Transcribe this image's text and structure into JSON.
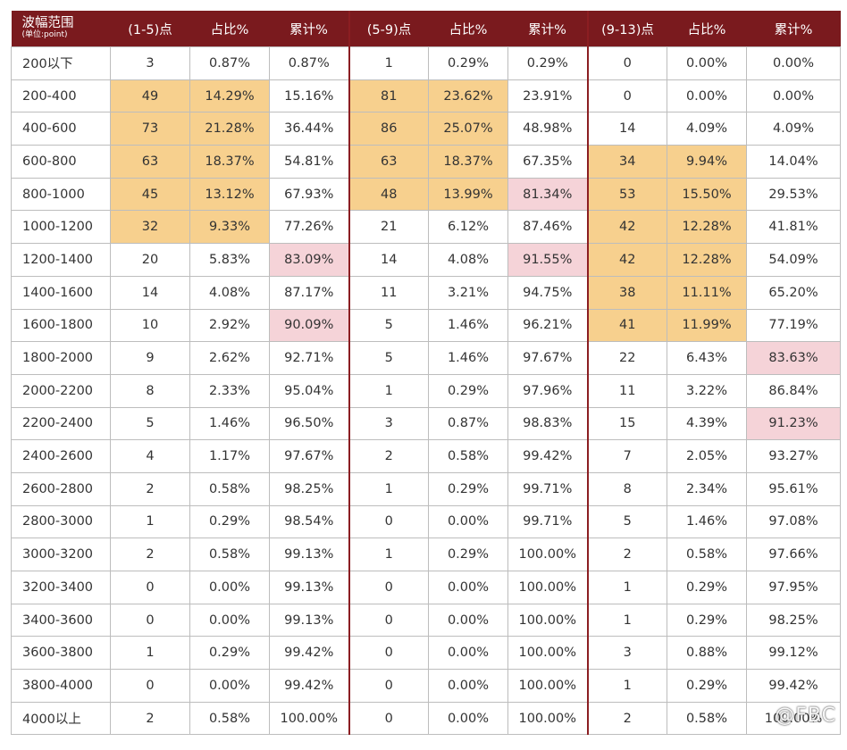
{
  "chart_data": {
    "type": "table",
    "header": {
      "range_label": "波幅范围",
      "range_unit": "(单位:point)",
      "columns": [
        "(1-5)点",
        "占比%",
        "累计%",
        "(5-9)点",
        "占比%",
        "累计%",
        "(9-13)点",
        "占比%",
        "累计%"
      ]
    },
    "rows": [
      [
        "200以下",
        "3",
        "0.87%",
        "0.87%",
        "1",
        "0.29%",
        "0.29%",
        "0",
        "0.00%",
        "0.00%"
      ],
      [
        "200-400",
        "49",
        "14.29%",
        "15.16%",
        "81",
        "23.62%",
        "23.91%",
        "0",
        "0.00%",
        "0.00%"
      ],
      [
        "400-600",
        "73",
        "21.28%",
        "36.44%",
        "86",
        "25.07%",
        "48.98%",
        "14",
        "4.09%",
        "4.09%"
      ],
      [
        "600-800",
        "63",
        "18.37%",
        "54.81%",
        "63",
        "18.37%",
        "67.35%",
        "34",
        "9.94%",
        "14.04%"
      ],
      [
        "800-1000",
        "45",
        "13.12%",
        "67.93%",
        "48",
        "13.99%",
        "81.34%",
        "53",
        "15.50%",
        "29.53%"
      ],
      [
        "1000-1200",
        "32",
        "9.33%",
        "77.26%",
        "21",
        "6.12%",
        "87.46%",
        "42",
        "12.28%",
        "41.81%"
      ],
      [
        "1200-1400",
        "20",
        "5.83%",
        "83.09%",
        "14",
        "4.08%",
        "91.55%",
        "42",
        "12.28%",
        "54.09%"
      ],
      [
        "1400-1600",
        "14",
        "4.08%",
        "87.17%",
        "11",
        "3.21%",
        "94.75%",
        "38",
        "11.11%",
        "65.20%"
      ],
      [
        "1600-1800",
        "10",
        "2.92%",
        "90.09%",
        "5",
        "1.46%",
        "96.21%",
        "41",
        "11.99%",
        "77.19%"
      ],
      [
        "1800-2000",
        "9",
        "2.62%",
        "92.71%",
        "5",
        "1.46%",
        "97.67%",
        "22",
        "6.43%",
        "83.63%"
      ],
      [
        "2000-2200",
        "8",
        "2.33%",
        "95.04%",
        "1",
        "0.29%",
        "97.96%",
        "11",
        "3.22%",
        "86.84%"
      ],
      [
        "2200-2400",
        "5",
        "1.46%",
        "96.50%",
        "3",
        "0.87%",
        "98.83%",
        "15",
        "4.39%",
        "91.23%"
      ],
      [
        "2400-2600",
        "4",
        "1.17%",
        "97.67%",
        "2",
        "0.58%",
        "99.42%",
        "7",
        "2.05%",
        "93.27%"
      ],
      [
        "2600-2800",
        "2",
        "0.58%",
        "98.25%",
        "1",
        "0.29%",
        "99.71%",
        "8",
        "2.34%",
        "95.61%"
      ],
      [
        "2800-3000",
        "1",
        "0.29%",
        "98.54%",
        "0",
        "0.00%",
        "99.71%",
        "5",
        "1.46%",
        "97.08%"
      ],
      [
        "3000-3200",
        "2",
        "0.58%",
        "99.13%",
        "1",
        "0.29%",
        "100.00%",
        "2",
        "0.58%",
        "97.66%"
      ],
      [
        "3200-3400",
        "0",
        "0.00%",
        "99.13%",
        "0",
        "0.00%",
        "100.00%",
        "1",
        "0.29%",
        "97.95%"
      ],
      [
        "3400-3600",
        "0",
        "0.00%",
        "99.13%",
        "0",
        "0.00%",
        "100.00%",
        "1",
        "0.29%",
        "98.25%"
      ],
      [
        "3600-3800",
        "1",
        "0.29%",
        "99.42%",
        "0",
        "0.00%",
        "100.00%",
        "3",
        "0.88%",
        "99.12%"
      ],
      [
        "3800-4000",
        "0",
        "0.00%",
        "99.42%",
        "0",
        "0.00%",
        "100.00%",
        "1",
        "0.29%",
        "99.42%"
      ],
      [
        "4000以上",
        "2",
        "0.58%",
        "100.00%",
        "0",
        "0.00%",
        "100.00%",
        "2",
        "0.58%",
        "100.00%"
      ]
    ],
    "highlights": {
      "orange": [
        [
          1,
          1
        ],
        [
          1,
          2
        ],
        [
          1,
          4
        ],
        [
          1,
          5
        ],
        [
          2,
          1
        ],
        [
          2,
          2
        ],
        [
          2,
          4
        ],
        [
          2,
          5
        ],
        [
          3,
          1
        ],
        [
          3,
          2
        ],
        [
          3,
          4
        ],
        [
          3,
          5
        ],
        [
          3,
          7
        ],
        [
          3,
          8
        ],
        [
          4,
          1
        ],
        [
          4,
          2
        ],
        [
          4,
          4
        ],
        [
          4,
          5
        ],
        [
          4,
          7
        ],
        [
          4,
          8
        ],
        [
          5,
          1
        ],
        [
          5,
          2
        ],
        [
          5,
          7
        ],
        [
          5,
          8
        ],
        [
          6,
          7
        ],
        [
          6,
          8
        ],
        [
          7,
          7
        ],
        [
          7,
          8
        ],
        [
          8,
          7
        ],
        [
          8,
          8
        ]
      ],
      "pink": [
        [
          4,
          6
        ],
        [
          6,
          3
        ],
        [
          6,
          6
        ],
        [
          8,
          3
        ],
        [
          9,
          9
        ],
        [
          11,
          9
        ]
      ]
    },
    "colors": {
      "header_bg": "#7a1a1e",
      "header_text": "#ffffff",
      "highlight_orange": "#f7d08e",
      "highlight_pink": "#f5d3d8",
      "group_separator": "#8b1e22"
    }
  },
  "watermark": "@FBC"
}
